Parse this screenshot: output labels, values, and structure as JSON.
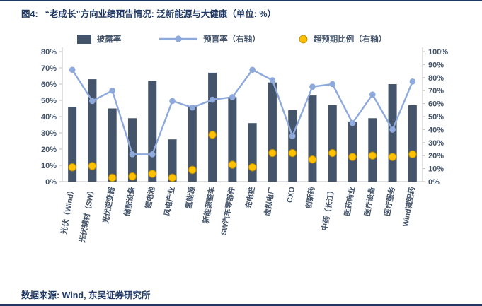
{
  "figure": {
    "title_prefix": "图4:",
    "title": "“老成长”方向业绩预告情况: 泛新能源与大健康（单位: %）",
    "source": "数据来源: Wind, 东吴证券研究所"
  },
  "colors": {
    "accent_navy": "#1F3864",
    "bar": "#44546A",
    "line": "#8EA9DB",
    "dot": "#FFC000",
    "dot_stroke": "#BF9000",
    "axis_text": "#44546A",
    "axis_line": "#BFBFBF"
  },
  "chart_data": {
    "type": "bar",
    "subtype": "combo-bar-line-scatter",
    "title": "“老成长”方向业绩预告情况: 泛新能源与大健康（单位: %）",
    "categories": [
      "光伏（Wind）",
      "光伏辅材（SW）",
      "光伏逆变器",
      "储能设备",
      "锂电池",
      "风电产业",
      "氢能源",
      "新能源整车",
      "SW汽车零部件",
      "充电桩",
      "虚拟电厂",
      "CXO",
      "创新药",
      "中药（长江）",
      "医药商业",
      "医疗设备",
      "医疗服务",
      "Wind减肥药"
    ],
    "series": [
      {
        "name": "披露率",
        "type": "bar",
        "axis": "left",
        "values": [
          46,
          63,
          45,
          39,
          62,
          26,
          46,
          67,
          52,
          36,
          61,
          44,
          53,
          47,
          37,
          39,
          60,
          47
        ]
      },
      {
        "name": "预喜率（右轴）",
        "type": "line",
        "axis": "right",
        "values": [
          86,
          62,
          70,
          21,
          21,
          62,
          57,
          63,
          65,
          86,
          78,
          35,
          73,
          75,
          45,
          67,
          40,
          77
        ]
      },
      {
        "name": "超预期比例（右轴）",
        "type": "scatter",
        "axis": "right",
        "values": [
          11,
          12,
          3,
          4,
          6,
          3,
          9,
          36,
          13,
          11,
          22,
          22,
          17,
          22,
          19,
          20,
          19,
          21
        ]
      }
    ],
    "left_axis": {
      "min": 0,
      "max": 80,
      "step": 10,
      "format": "percent"
    },
    "right_axis": {
      "min": 0,
      "max": 100,
      "step": 10,
      "format": "percent"
    },
    "grid": false,
    "legend_position": "top"
  }
}
